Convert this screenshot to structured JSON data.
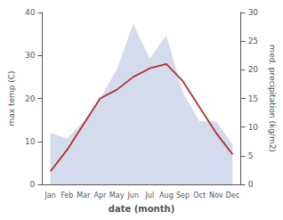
{
  "chart_data": {
    "type": "line",
    "xlabel": "date (month)",
    "ylabel": "max temp (C)",
    "y2label": "med. precipitation (kg/m2)",
    "categories": [
      "Jan",
      "Feb",
      "Mar",
      "Apr",
      "May",
      "Jun",
      "Jul",
      "Aug",
      "Sep",
      "Oct",
      "Nov",
      "Dec"
    ],
    "series": [
      {
        "type": "area",
        "axis": "y2",
        "color": "#b0bedd",
        "values": [
          9,
          8,
          11,
          15,
          20,
          28,
          22,
          26,
          16,
          11,
          11,
          7
        ]
      },
      {
        "type": "line",
        "color": "#b03030",
        "values": [
          3,
          8,
          14,
          20,
          22,
          25,
          27,
          28,
          24,
          18,
          12,
          7
        ]
      }
    ],
    "ylim": [
      0,
      40
    ],
    "yticks": [
      0,
      10,
      20,
      30,
      40
    ],
    "y2lim": [
      0,
      30
    ],
    "y2ticks": [
      0,
      5,
      10,
      15,
      20,
      25,
      30
    ],
    "grid": false
  }
}
